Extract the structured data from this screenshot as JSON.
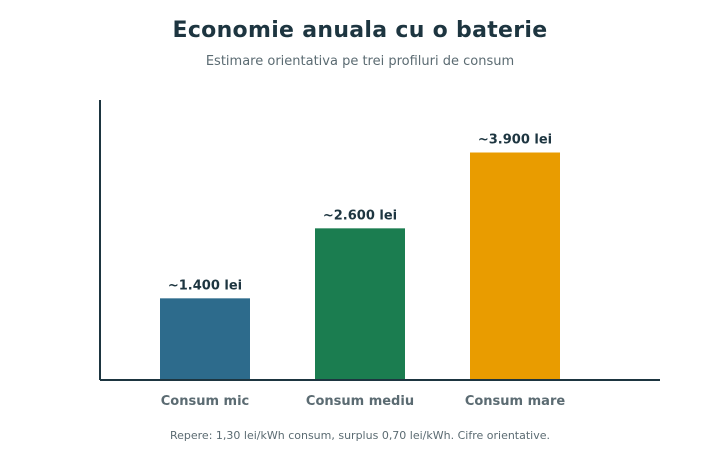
{
  "chart_data": {
    "type": "bar",
    "title": "Economie anuala cu o baterie",
    "subtitle": "Estimare orientativa pe trei profiluri de consum",
    "categories": [
      "Consum mic",
      "Consum mediu",
      "Consum mare"
    ],
    "values": [
      1400,
      2600,
      3900
    ],
    "data_labels": [
      "~1.400 lei",
      "~2.600 lei",
      "~3.900 lei"
    ],
    "colors": [
      "#2d6b8c",
      "#1b7d50",
      "#e99c00"
    ],
    "ylim": [
      0,
      4800
    ],
    "grid": false,
    "xlabel": "",
    "ylabel": ""
  },
  "footnote": "Repere: 1,30 lei/kWh consum, surplus 0,70 lei/kWh. Cifre orientative."
}
